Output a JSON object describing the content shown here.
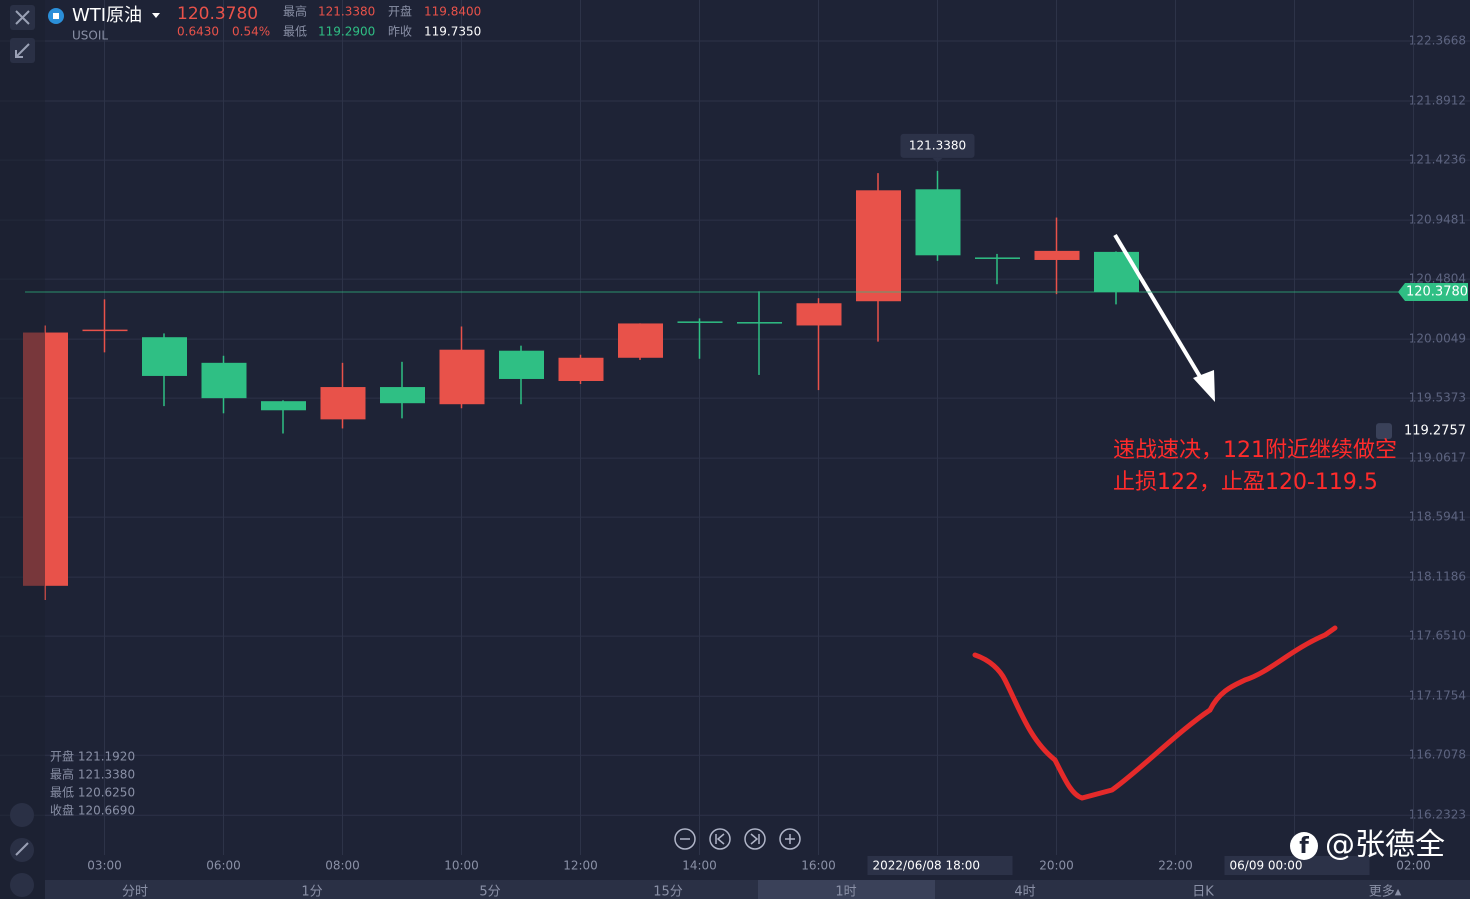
{
  "header": {
    "symbol": "WTI原油",
    "code": "USOIL",
    "price": "120.3780",
    "change": "0.6430",
    "change_pct": "0.54%",
    "high_label": "最高",
    "high": "121.3380",
    "open_label": "开盘",
    "open": "119.8400",
    "low_label": "最低",
    "low": "119.2900",
    "prev_label": "昨收",
    "prev": "119.7350"
  },
  "chart_data": {
    "type": "candlestick",
    "categories": [
      null,
      "03:00",
      null,
      "06:00",
      null,
      "08:00",
      null,
      "10:00",
      null,
      "12:00",
      null,
      "14:00",
      null,
      "16:00",
      null,
      "2022/06/08 18:00",
      null,
      "20:00",
      null,
      "22:00",
      null,
      "06/09 00:00",
      null,
      "02:00"
    ],
    "open": [
      118.05,
      120.08,
      120.02,
      119.817,
      119.513,
      119.369,
      119.625,
      119.489,
      119.913,
      119.673,
      119.857,
      120.145,
      120.14,
      120.113,
      120.305,
      121.192,
      120.652,
      120.632,
      120.696,
      null,
      null,
      null,
      null,
      null
    ],
    "high": [
      120.113,
      120.32,
      120.05,
      119.873,
      119.52,
      119.817,
      119.825,
      120.105,
      119.953,
      119.881,
      120.13,
      120.169,
      120.384,
      120.329,
      121.32,
      121.338,
      120.68,
      120.968,
      120.7,
      null,
      null,
      null,
      null,
      null
    ],
    "low": [
      117.938,
      119.9,
      119.474,
      119.417,
      119.257,
      119.297,
      119.377,
      119.457,
      119.489,
      119.649,
      119.84,
      119.849,
      119.721,
      119.601,
      119.985,
      120.625,
      120.44,
      120.361,
      120.28,
      null,
      null,
      null,
      null,
      null
    ],
    "close": [
      120.057,
      120.08,
      119.713,
      119.537,
      119.441,
      119.625,
      119.497,
      119.921,
      119.689,
      119.857,
      120.129,
      120.137,
      120.13,
      120.289,
      121.184,
      120.669,
      120.64,
      120.704,
      120.378,
      null,
      null,
      null,
      null,
      null
    ],
    "up_color": "#e8524a",
    "down_color": "#2fbf84",
    "ylim": [
      115.917,
      122.692
    ],
    "yticks": [
      122.3668,
      121.8912,
      121.4236,
      120.9481,
      120.4804,
      120.0049,
      119.5373,
      119.0617,
      118.5941,
      118.1186,
      {
        "value": 117.651,
        "label": "117.6510"
      },
      117.1754,
      {
        "value": 116.7078,
        "label": "116.7078"
      },
      116.2323
    ],
    "grid": true,
    "last_price": {
      "value": 120.378,
      "label": "120.3780"
    },
    "alert_price": 119.2757,
    "tooltip": {
      "value": 121.338,
      "label": "121.3380"
    },
    "ohlc_legend": [
      "开盘 121.1920",
      "最高 121.3380",
      "最低 120.6250",
      "收盘 120.6690"
    ],
    "annotation": [
      "速战速决，121附近继续做空",
      "止损122，止盈120-119.5"
    ]
  },
  "tabs": [
    "分时",
    "1分",
    "5分",
    "15分",
    "1时",
    "4时",
    "日K",
    "更多▴"
  ],
  "watermark": "@张德全"
}
